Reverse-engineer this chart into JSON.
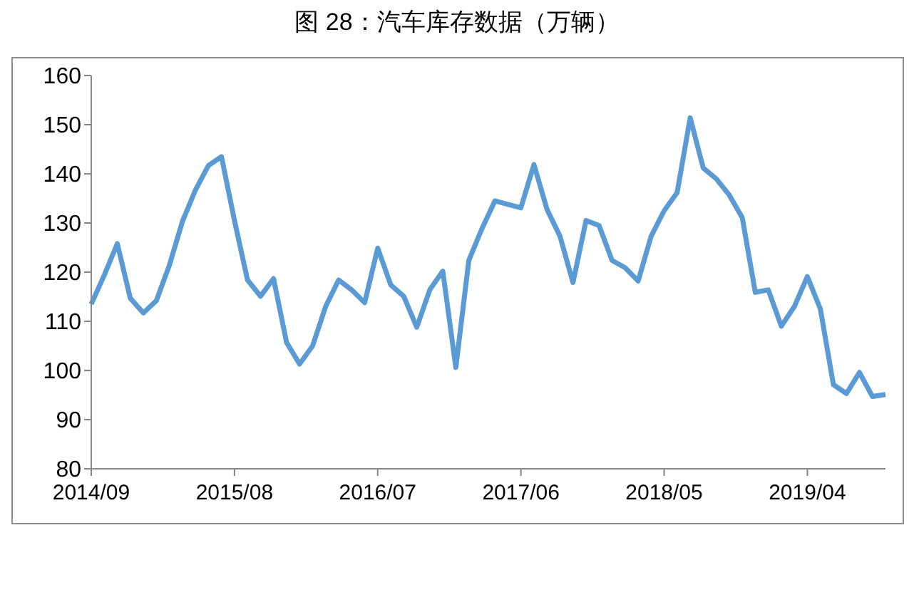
{
  "chart_data": {
    "type": "line",
    "title": "图 28：汽车库存数据（万辆）",
    "categories": [
      "2014/09",
      null,
      null,
      null,
      null,
      null,
      null,
      null,
      null,
      null,
      null,
      "2015/08",
      null,
      null,
      null,
      null,
      null,
      null,
      null,
      null,
      null,
      null,
      "2016/07",
      null,
      null,
      null,
      null,
      null,
      null,
      null,
      null,
      null,
      null,
      "2017/06",
      null,
      null,
      null,
      null,
      null,
      null,
      null,
      null,
      null,
      null,
      "2018/05",
      null,
      null,
      null,
      null,
      null,
      null,
      null,
      null,
      null,
      null,
      "2019/04",
      null,
      null,
      null,
      null,
      null,
      null
    ],
    "series": [
      {
        "color": "#5b9bd5",
        "values": [
          113.5,
          119.4,
          125.8,
          114.7,
          111.7,
          114.2,
          121.4,
          130.3,
          136.7,
          141.7,
          143.5,
          130.5,
          118.4,
          115.1,
          118.7,
          105.7,
          101.3,
          105,
          113,
          118.4,
          116.4,
          113.8,
          124.9,
          117.4,
          115.1,
          108.8,
          116.4,
          120.2,
          100.6,
          122.4,
          128.8,
          134.5,
          133.8,
          133.1,
          141.9,
          132.8,
          127.3,
          117.9,
          130.5,
          129.5,
          122.4,
          120.9,
          118.2,
          127.3,
          132.5,
          136.2,
          151.4,
          141.2,
          139,
          135.7,
          131.1,
          115.9,
          116.4,
          109,
          113,
          119.1,
          112.5,
          97.1,
          95.3,
          99.6,
          94.7,
          95.1
        ]
      }
    ],
    "ylim": [
      80,
      160
    ],
    "yticks": [
      80,
      90,
      100,
      110,
      120,
      130,
      140,
      150,
      160
    ],
    "grid": false,
    "legend": false,
    "marker": "none",
    "line_style": "solid"
  }
}
